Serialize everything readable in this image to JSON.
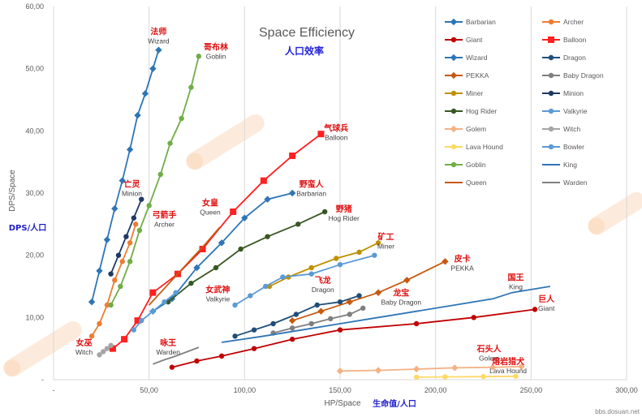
{
  "chart_data": {
    "type": "line",
    "title": "Space Efficiency",
    "subtitle": "人口效率",
    "xlabel": "HP/Space",
    "xlabel_cn": "生命值/人口",
    "ylabel": "DPS/Space",
    "ylabel_cn": "DPS/人口",
    "xlim": [
      0,
      300
    ],
    "ylim": [
      0,
      60
    ],
    "x_ticks": [
      "-",
      "50,00",
      "100,00",
      "150,00",
      "200,00",
      "250,00",
      "300,00"
    ],
    "y_ticks": [
      "-",
      "10,00",
      "20,00",
      "30,00",
      "40,00",
      "50,00",
      "60,00"
    ],
    "grid": "vertical",
    "legend": "right",
    "watermark": "bbs.dosuan.net",
    "series": [
      {
        "name": "Barbarian",
        "color": "#2e75b6",
        "marker": "diamond",
        "points": [
          [
            52,
            11
          ],
          [
            62,
            13
          ],
          [
            75,
            18
          ],
          [
            88,
            22
          ],
          [
            100,
            26
          ],
          [
            112,
            29
          ],
          [
            125,
            30
          ]
        ]
      },
      {
        "name": "Archer",
        "color": "#ed7d31",
        "marker": "circle",
        "points": [
          [
            20,
            7
          ],
          [
            24,
            9
          ],
          [
            28,
            12
          ],
          [
            32,
            16
          ],
          [
            36,
            19
          ],
          [
            40,
            22
          ],
          [
            43,
            25
          ]
        ]
      },
      {
        "name": "Giant",
        "color": "#c00000",
        "marker": "circle",
        "points": [
          [
            62,
            2
          ],
          [
            75,
            3
          ],
          [
            88,
            3.8
          ],
          [
            105,
            5
          ],
          [
            125,
            6.5
          ],
          [
            150,
            8
          ],
          [
            190,
            9
          ],
          [
            220,
            10
          ],
          [
            252,
            11.3
          ]
        ]
      },
      {
        "name": "Balloon",
        "color": "#ff2020",
        "marker": "square",
        "points": [
          [
            31,
            5
          ],
          [
            37,
            6.5
          ],
          [
            44,
            9.5
          ],
          [
            52,
            14
          ],
          [
            65,
            17
          ],
          [
            78,
            21
          ],
          [
            94,
            27
          ],
          [
            110,
            32
          ],
          [
            125,
            36
          ],
          [
            140,
            39.5
          ]
        ]
      },
      {
        "name": "Wizard",
        "color": "#2e75b6",
        "marker": "diamond",
        "points": [
          [
            20,
            12.5
          ],
          [
            24,
            17.5
          ],
          [
            28,
            22.5
          ],
          [
            32,
            27.5
          ],
          [
            36,
            32
          ],
          [
            40,
            37
          ],
          [
            44,
            42.5
          ],
          [
            48,
            46
          ],
          [
            52,
            50
          ],
          [
            55,
            53
          ]
        ]
      },
      {
        "name": "Dragon",
        "color": "#1f4e79",
        "marker": "circle",
        "points": [
          [
            95,
            7
          ],
          [
            105,
            8
          ],
          [
            115,
            9
          ],
          [
            127,
            10.5
          ],
          [
            138,
            12
          ],
          [
            150,
            12.5
          ],
          [
            160,
            13.5
          ]
        ]
      },
      {
        "name": "PEKKA",
        "color": "#c55a11",
        "marker": "diamond",
        "points": [
          [
            125,
            9.5
          ],
          [
            140,
            11
          ],
          [
            155,
            12.5
          ],
          [
            170,
            14
          ],
          [
            185,
            16
          ],
          [
            205,
            19
          ]
        ]
      },
      {
        "name": "Baby Dragon",
        "color": "#7f7f7f",
        "marker": "circle",
        "points": [
          [
            115,
            7.5
          ],
          [
            125,
            8.3
          ],
          [
            135,
            9
          ],
          [
            145,
            9.8
          ],
          [
            155,
            10.5
          ],
          [
            162,
            11.5
          ]
        ]
      },
      {
        "name": "Miner",
        "color": "#bf9000",
        "marker": "circle",
        "points": [
          [
            113,
            15
          ],
          [
            123,
            16.5
          ],
          [
            135,
            18
          ],
          [
            148,
            19.5
          ],
          [
            160,
            20.5
          ],
          [
            170,
            22
          ]
        ]
      },
      {
        "name": "Minion",
        "color": "#1f3864",
        "marker": "circle",
        "points": [
          [
            30,
            17
          ],
          [
            34,
            20
          ],
          [
            38,
            23
          ],
          [
            42,
            26
          ],
          [
            46,
            29
          ]
        ]
      },
      {
        "name": "Hog Rider",
        "color": "#385723",
        "marker": "circle",
        "points": [
          [
            60,
            12.5
          ],
          [
            72,
            15.5
          ],
          [
            85,
            18
          ],
          [
            98,
            21
          ],
          [
            112,
            23
          ],
          [
            128,
            25
          ],
          [
            142,
            27
          ]
        ]
      },
      {
        "name": "Valkyrie",
        "color": "#5b9bd5",
        "marker": "circle",
        "points": [
          [
            95,
            12
          ],
          [
            103,
            13.5
          ],
          [
            111,
            15
          ],
          [
            120,
            16.5
          ],
          [
            135,
            17
          ],
          [
            150,
            18.5
          ],
          [
            168,
            20
          ]
        ]
      },
      {
        "name": "Golem",
        "color": "#f4b183",
        "marker": "diamond",
        "points": [
          [
            150,
            1.4
          ],
          [
            170,
            1.5
          ],
          [
            190,
            1.7
          ],
          [
            210,
            1.9
          ],
          [
            230,
            2.0
          ],
          [
            245,
            2.1
          ]
        ]
      },
      {
        "name": "Witch",
        "color": "#a5a5a5",
        "marker": "circle",
        "points": [
          [
            24,
            4
          ],
          [
            26,
            4.5
          ],
          [
            28,
            5
          ],
          [
            30,
            5.5
          ]
        ]
      },
      {
        "name": "Lava Hound",
        "color": "#ffd966",
        "marker": "circle",
        "points": [
          [
            190,
            0.4
          ],
          [
            205,
            0.45
          ],
          [
            225,
            0.5
          ],
          [
            242,
            0.55
          ]
        ]
      },
      {
        "name": "Bowler",
        "color": "#5b9bd5",
        "marker": "circle",
        "points": [
          [
            42,
            8
          ],
          [
            46,
            9.5
          ],
          [
            52,
            11
          ],
          [
            58,
            12.5
          ],
          [
            64,
            14
          ]
        ]
      },
      {
        "name": "Goblin",
        "color": "#70ad47",
        "marker": "circle",
        "points": [
          [
            30,
            12
          ],
          [
            35,
            15
          ],
          [
            40,
            19
          ],
          [
            45,
            24
          ],
          [
            50,
            28
          ],
          [
            56,
            33
          ],
          [
            61,
            38
          ],
          [
            67,
            42
          ],
          [
            72,
            47
          ],
          [
            76,
            52
          ]
        ]
      },
      {
        "name": "King",
        "color": "#2e75b6",
        "marker": "none",
        "points": [
          [
            88,
            6
          ],
          [
            110,
            7
          ],
          [
            130,
            8
          ],
          [
            150,
            9
          ],
          [
            170,
            10
          ],
          [
            190,
            11
          ],
          [
            210,
            12
          ],
          [
            230,
            13
          ],
          [
            240,
            14
          ],
          [
            260,
            15
          ]
        ]
      },
      {
        "name": "Queen",
        "color": "#c55a11",
        "marker": "none",
        "points": [
          [
            50,
            12
          ],
          [
            56,
            14
          ],
          [
            62,
            16
          ],
          [
            68,
            18
          ],
          [
            74,
            20
          ],
          [
            80,
            22
          ],
          [
            87,
            24.5
          ]
        ]
      },
      {
        "name": "Warden",
        "color": "#808080",
        "marker": "none",
        "points": [
          [
            52,
            2.5
          ],
          [
            58,
            3.2
          ],
          [
            64,
            3.8
          ],
          [
            70,
            4.5
          ],
          [
            76,
            5.2
          ]
        ]
      }
    ],
    "annotations": [
      {
        "cn": "法师",
        "en": "Wizard",
        "x": 55,
        "y": 55.5
      },
      {
        "cn": "哥布林",
        "en": "Goblin",
        "x": 85,
        "y": 53
      },
      {
        "cn": "气球兵",
        "en": "Balloon",
        "x": 148,
        "y": 40
      },
      {
        "cn": "野蛮人",
        "en": "Barbarian",
        "x": 135,
        "y": 31
      },
      {
        "cn": "亡灵",
        "en": "Minion",
        "x": 41,
        "y": 31
      },
      {
        "cn": "弓箭手",
        "en": "Archer",
        "x": 58,
        "y": 26
      },
      {
        "cn": "女皇",
        "en": "Queen",
        "x": 82,
        "y": 28
      },
      {
        "cn": "野猪",
        "en": "Hog Rider",
        "x": 152,
        "y": 27
      },
      {
        "cn": "矿工",
        "en": "Miner",
        "x": 174,
        "y": 22.5
      },
      {
        "cn": "皮卡",
        "en": "PEKKA",
        "x": 214,
        "y": 19
      },
      {
        "cn": "国王",
        "en": "King",
        "x": 242,
        "y": 16
      },
      {
        "cn": "飞龙",
        "en": "Dragon",
        "x": 141,
        "y": 15.5
      },
      {
        "cn": "女武神",
        "en": "Valkyrie",
        "x": 86,
        "y": 14
      },
      {
        "cn": "龙宝",
        "en": "Baby Dragon",
        "x": 182,
        "y": 13.5
      },
      {
        "cn": "巨人",
        "en": "Giant",
        "x": 258,
        "y": 12.5
      },
      {
        "cn": "女巫",
        "en": "Witch",
        "x": 16,
        "y": 5.5
      },
      {
        "cn": "咏王",
        "en": "Warden",
        "x": 60,
        "y": 5.5
      },
      {
        "cn": "石头人",
        "en": "Golem",
        "x": 228,
        "y": 4.5
      },
      {
        "cn": "熔岩猎犬",
        "en": "Lava Hound",
        "x": 238,
        "y": 2.5
      }
    ]
  }
}
